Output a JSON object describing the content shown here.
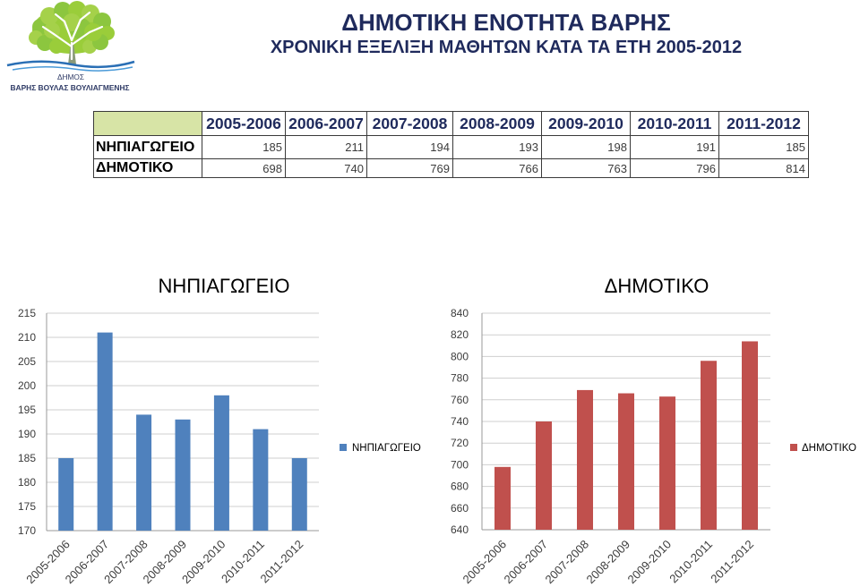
{
  "logo": {
    "line1": "ΔΗΜΟΣ",
    "line2": "ΒΑΡΗΣ ΒΟΥΛΑΣ ΒΟΥΛΙΑΓΜΕΝΗΣ"
  },
  "header": {
    "title": "ΔΗΜΟΤΙΚΗ ΕΝΟΤΗΤΑ ΒΑΡΗΣ",
    "subtitle": "ΧΡΟΝΙΚΗ ΕΞΕΛΙΞΗ ΜΑΘΗΤΩΝ ΚΑΤΑ ΤΑ ΕΤΗ 2005-2012"
  },
  "colors": {
    "title": "#1F2A5C",
    "table_corner": "#D7E4A6"
  },
  "table": {
    "columns": [
      "2005-2006",
      "2006-2007",
      "2007-2008",
      "2008-2009",
      "2009-2010",
      "2010-2011",
      "2011-2012"
    ],
    "rows": [
      {
        "label": "ΝΗΠΙΑΓΩΓΕΙΟ",
        "values": [
          185,
          211,
          194,
          193,
          198,
          191,
          185
        ]
      },
      {
        "label": "ΔΗΜΟΤΙΚΟ",
        "values": [
          698,
          740,
          769,
          766,
          763,
          796,
          814
        ]
      }
    ]
  },
  "chart_data": [
    {
      "type": "bar",
      "title": "ΝΗΠΙΑΓΩΓΕΙΟ",
      "categories": [
        "2005-2006",
        "2006-2007",
        "2007-2008",
        "2008-2009",
        "2009-2010",
        "2010-2011",
        "2011-2012"
      ],
      "series": [
        {
          "name": "ΝΗΠΙΑΓΩΓΕΙΟ",
          "color": "#4F81BD",
          "values": [
            185,
            211,
            194,
            193,
            198,
            191,
            185
          ]
        }
      ],
      "ylim": [
        170,
        215
      ],
      "yticks": [
        170,
        175,
        180,
        185,
        190,
        195,
        200,
        205,
        210,
        215
      ],
      "grid": true,
      "legend": "right"
    },
    {
      "type": "bar",
      "title": "ΔΗΜΟΤΙΚΟ",
      "categories": [
        "2005-2006",
        "2006-2007",
        "2007-2008",
        "2008-2009",
        "2009-2010",
        "2010-2011",
        "2011-2012"
      ],
      "series": [
        {
          "name": "ΔΗΜΟΤΙΚΟ",
          "color": "#C0504D",
          "values": [
            698,
            740,
            769,
            766,
            763,
            796,
            814
          ]
        }
      ],
      "ylim": [
        640,
        840
      ],
      "yticks": [
        640,
        660,
        680,
        700,
        720,
        740,
        760,
        780,
        800,
        820,
        840
      ],
      "grid": true,
      "legend": "right"
    }
  ]
}
